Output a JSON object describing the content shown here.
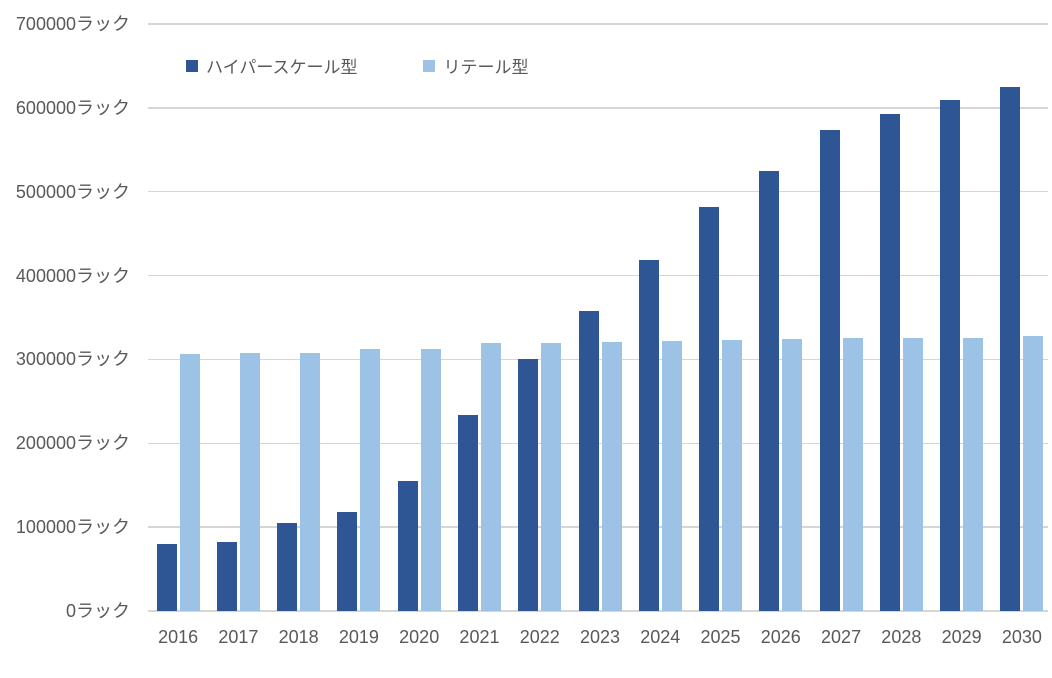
{
  "chart_data": {
    "type": "bar",
    "title": "",
    "categories": [
      "2016",
      "2017",
      "2018",
      "2019",
      "2020",
      "2021",
      "2022",
      "2023",
      "2024",
      "2025",
      "2026",
      "2027",
      "2028",
      "2029",
      "2030"
    ],
    "series": [
      {
        "key": "hyperscale",
        "name": "ハイパースケール型",
        "color": "#2E5594",
        "values": [
          80000,
          82000,
          105000,
          118000,
          155000,
          234000,
          300000,
          358000,
          418000,
          482000,
          525000,
          573000,
          593000,
          609000,
          625000
        ]
      },
      {
        "key": "retail",
        "name": "リテール型",
        "color": "#9CC2E5",
        "values": [
          307000,
          308000,
          308000,
          312000,
          313000,
          320000,
          320000,
          321000,
          322000,
          323000,
          324000,
          325000,
          325000,
          326000,
          328000
        ]
      }
    ],
    "unit": "ラック",
    "xlabel": "",
    "ylabel": "",
    "ylim": [
      0,
      700000
    ],
    "y_ticks": [
      0,
      100000,
      200000,
      300000,
      400000,
      500000,
      600000,
      700000
    ],
    "y_tick_labels": [
      "0ラック",
      "100000ラック",
      "200000ラック",
      "300000ラック",
      "400000ラック",
      "500000ラック",
      "600000ラック",
      "700000ラック"
    ],
    "grid": true,
    "legend_position": "top-left-inside",
    "colors": {
      "background": "#FFFFFF",
      "gridline": "#D6D6D6",
      "axis_text": "#595959"
    }
  }
}
